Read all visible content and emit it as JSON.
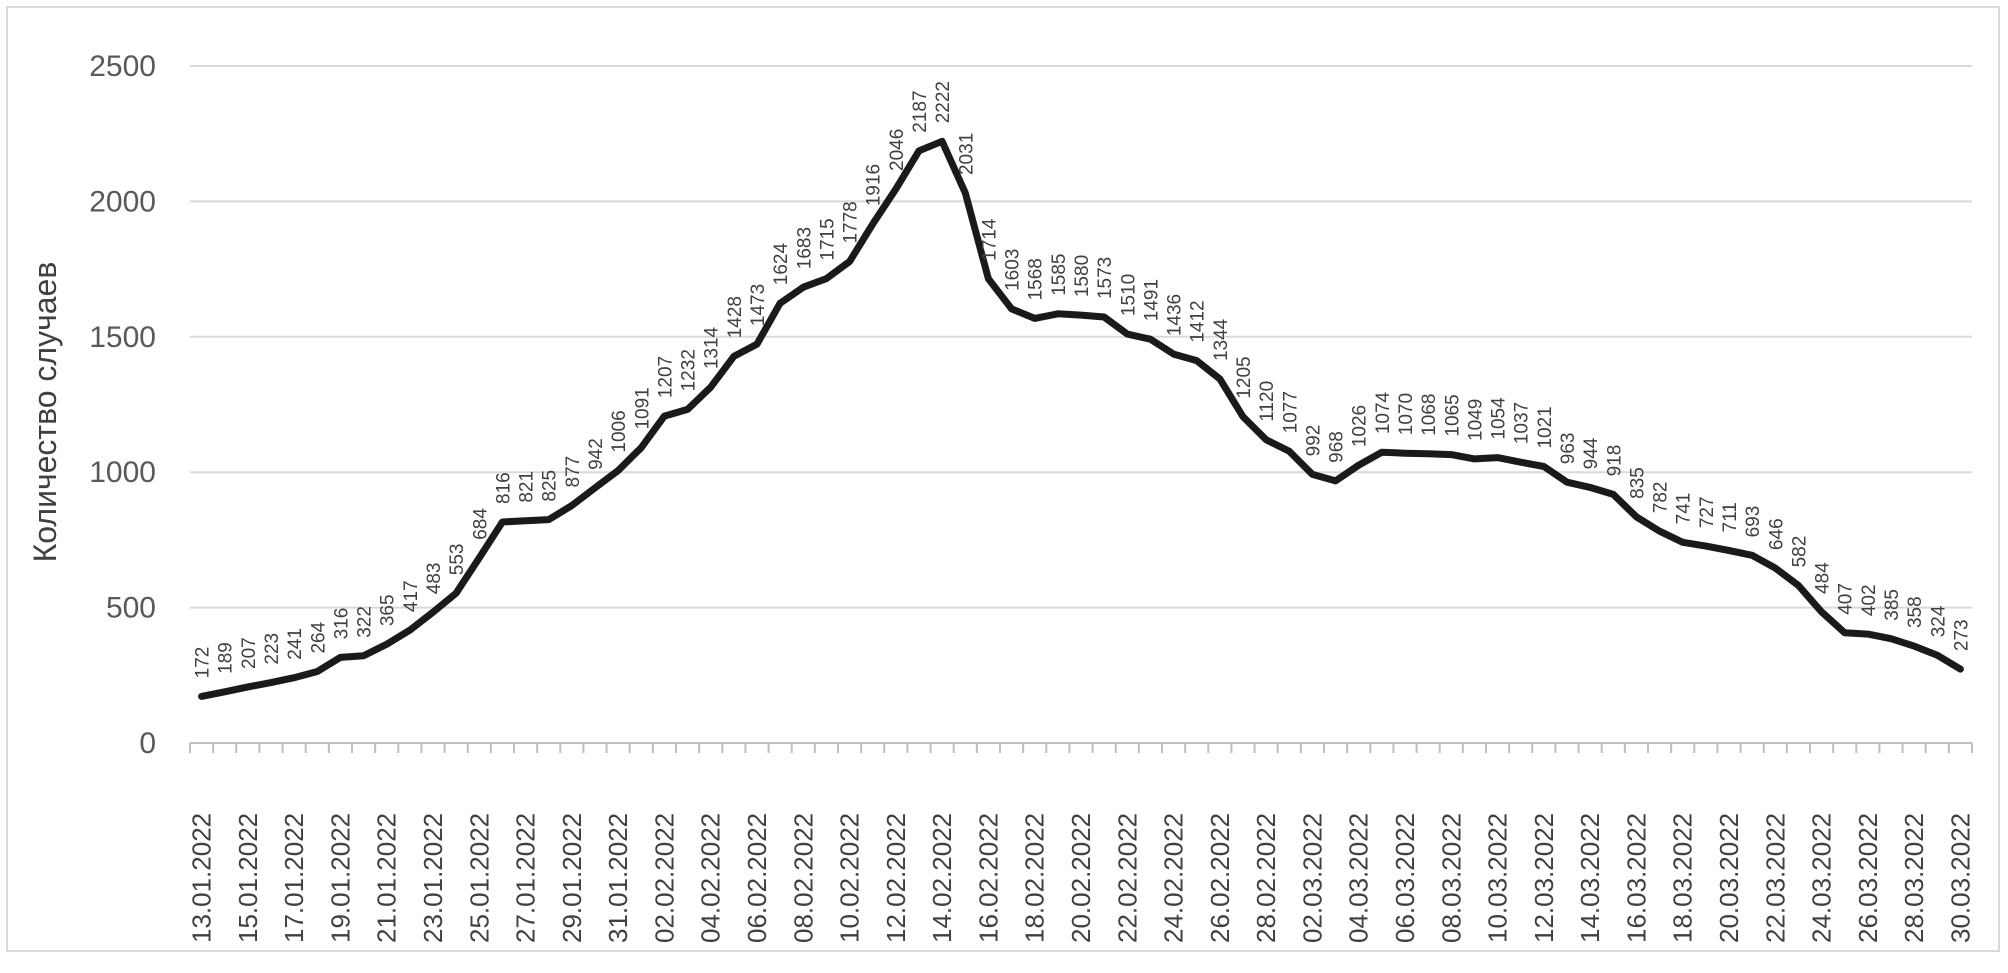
{
  "chart_data": {
    "type": "line",
    "title": "",
    "xlabel": "",
    "ylabel": "Количество случаев",
    "ylim": [
      0,
      2500
    ],
    "yticks": [
      0,
      500,
      1000,
      1500,
      2000,
      2500
    ],
    "grid": true,
    "legend": "none",
    "colors": {
      "line": "#1a1a1a",
      "grid": "#d9d9d9",
      "axis": "#bfbfbf",
      "frame": "#d9d9d9"
    },
    "x": [
      "13.01.2022",
      "14.01.2022",
      "15.01.2022",
      "16.01.2022",
      "17.01.2022",
      "18.01.2022",
      "19.01.2022",
      "20.01.2022",
      "21.01.2022",
      "22.01.2022",
      "23.01.2022",
      "24.01.2022",
      "25.01.2022",
      "26.01.2022",
      "27.01.2022",
      "28.01.2022",
      "29.01.2022",
      "30.01.2022",
      "31.01.2022",
      "01.02.2022",
      "02.02.2022",
      "03.02.2022",
      "04.02.2022",
      "05.02.2022",
      "06.02.2022",
      "07.02.2022",
      "08.02.2022",
      "09.02.2022",
      "10.02.2022",
      "11.02.2022",
      "12.02.2022",
      "13.02.2022",
      "14.02.2022",
      "15.02.2022",
      "16.02.2022",
      "17.02.2022",
      "18.02.2022",
      "19.02.2022",
      "20.02.2022",
      "21.02.2022",
      "22.02.2022",
      "23.02.2022",
      "24.02.2022",
      "25.02.2022",
      "26.02.2022",
      "27.02.2022",
      "28.02.2022",
      "01.03.2022",
      "02.03.2022",
      "03.03.2022",
      "04.03.2022",
      "05.03.2022",
      "06.03.2022",
      "07.03.2022",
      "08.03.2022",
      "09.03.2022",
      "10.03.2022",
      "11.03.2022",
      "12.03.2022",
      "13.03.2022",
      "14.03.2022",
      "15.03.2022",
      "16.03.2022",
      "17.03.2022",
      "18.03.2022",
      "19.03.2022",
      "20.03.2022",
      "21.03.2022",
      "22.03.2022",
      "23.03.2022",
      "24.03.2022",
      "25.03.2022",
      "26.03.2022",
      "27.03.2022",
      "28.03.2022",
      "29.03.2022",
      "30.03.2022"
    ],
    "xtick_labels": [
      "13.01.2022",
      "15.01.2022",
      "17.01.2022",
      "19.01.2022",
      "21.01.2022",
      "23.01.2022",
      "25.01.2022",
      "27.01.2022",
      "29.01.2022",
      "31.01.2022",
      "02.02.2022",
      "04.02.2022",
      "06.02.2022",
      "08.02.2022",
      "10.02.2022",
      "12.02.2022",
      "14.02.2022",
      "16.02.2022",
      "18.02.2022",
      "20.02.2022",
      "22.02.2022",
      "24.02.2022",
      "26.02.2022",
      "28.02.2022",
      "02.03.2022",
      "04.03.2022",
      "06.03.2022",
      "08.03.2022",
      "10.03.2022",
      "12.03.2022",
      "14.03.2022",
      "16.03.2022",
      "18.03.2022",
      "20.03.2022",
      "22.03.2022",
      "24.03.2022",
      "26.03.2022",
      "28.03.2022",
      "30.03.2022"
    ],
    "series": [
      {
        "values": [
          172,
          189,
          207,
          223,
          241,
          264,
          316,
          322,
          365,
          417,
          483,
          553,
          684,
          816,
          821,
          825,
          877,
          942,
          1006,
          1091,
          1207,
          1232,
          1314,
          1428,
          1473,
          1624,
          1683,
          1715,
          1778,
          1916,
          2046,
          2187,
          2222,
          2031,
          1714,
          1603,
          1568,
          1585,
          1580,
          1573,
          1510,
          1491,
          1436,
          1412,
          1344,
          1205,
          1120,
          1077,
          992,
          968,
          1026,
          1074,
          1070,
          1068,
          1065,
          1049,
          1054,
          1037,
          1021,
          963,
          944,
          918,
          835,
          782,
          741,
          727,
          711,
          693,
          646,
          582,
          484,
          407,
          402,
          385,
          358,
          324,
          273
        ]
      }
    ]
  }
}
